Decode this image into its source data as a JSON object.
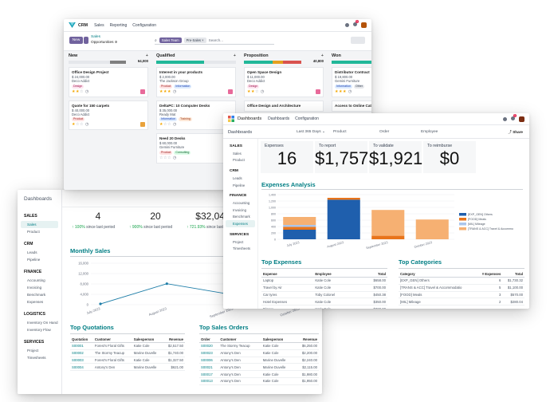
{
  "sales": {
    "breadcrumb": "Dashboards",
    "sidebar": [
      {
        "group": "SALES",
        "items": [
          "Sales",
          "Product"
        ],
        "active": "Sales"
      },
      {
        "group": "CRM",
        "items": [
          "Leads",
          "Pipeline"
        ]
      },
      {
        "group": "FINANCE",
        "items": [
          "Accounting",
          "Invoicing",
          "Benchmark",
          "Expenses"
        ]
      },
      {
        "group": "LOGISTICS",
        "items": [
          "Inventory On Hand",
          "Inventory Flow"
        ]
      },
      {
        "group": "SERVICES",
        "items": [
          "Project",
          "Timesheets"
        ]
      }
    ],
    "kpis": [
      {
        "value": "4",
        "delta": "↑ 100%",
        "delta_text": "since last period"
      },
      {
        "value": "20",
        "delta": "↑ 900%",
        "delta_text": "since last period"
      },
      {
        "value": "$32,043",
        "delta": "↑ 721.93%",
        "delta_text": "since last period"
      }
    ],
    "monthly_sales": {
      "title": "Monthly Sales",
      "chart_data": {
        "type": "line",
        "categories": [
          "July 2023",
          "August 2023",
          "September 2023",
          "October 2023"
        ],
        "values": [
          300,
          8100,
          3800,
          16000
        ],
        "yticks": [
          "0",
          "4,000",
          "8,000",
          "12,000",
          "16,000"
        ],
        "ylim": [
          0,
          16000
        ],
        "color": "#1f7ea8"
      }
    },
    "top_quotations": {
      "title": "Top Quotations",
      "columns": [
        "Quotation",
        "Customer",
        "Salesperson",
        "Revenue"
      ],
      "rows": [
        [
          "S00001",
          "Forest's Floral Gifts",
          "Katie Cole",
          "$2,517.50"
        ],
        [
          "S00002",
          "The Stormy Teacup",
          "Marine Duvelle",
          "$1,740.00"
        ],
        [
          "S00003",
          "Forest's Floral Gifts",
          "Katie Cole",
          "$1,327.50"
        ],
        [
          "S00004",
          "Antony's Den",
          "Marine Duvelle",
          "$621.00"
        ]
      ]
    },
    "top_sales_orders": {
      "title": "Top Sales Orders",
      "columns": [
        "Order",
        "Customer",
        "Salesperson",
        "Revenue"
      ],
      "rows": [
        [
          "S00020",
          "The Stormy Teacup",
          "Katie Cole",
          "$6,250.00"
        ],
        [
          "S00023",
          "Antony's Den",
          "Katie Cole",
          "$2,200.00"
        ],
        [
          "S00006",
          "Antony's Den",
          "Marine Duvelle",
          "$2,240.00"
        ],
        [
          "S00021",
          "Antony's Den",
          "Marine Duvelle",
          "$2,115.00"
        ],
        [
          "S00017",
          "Antony's Den",
          "Katie Cole",
          "$1,980.00"
        ],
        [
          "S00013",
          "Antony's Den",
          "Katie Cole",
          "$1,950.00"
        ]
      ]
    }
  },
  "crm": {
    "nav": {
      "app": "CRM",
      "menus": [
        "Sales",
        "Reporting",
        "Configuration"
      ],
      "chat_count": "1"
    },
    "new_label": "New",
    "breadcrumb": {
      "parent": "Sales",
      "current": "Opportunities"
    },
    "search": {
      "facets": [
        "Sales Team",
        "Pre-Sales"
      ],
      "placeholder": "Search..."
    },
    "columns": [
      {
        "name": "New",
        "amount": "64,000",
        "bar": [
          {
            "c": "#21b799",
            "w": 0
          },
          {
            "c": "#e5e7eb",
            "w": 0.72
          },
          {
            "c": "#808080",
            "w": 0.28
          }
        ],
        "cards": [
          {
            "title": "Office Design Project",
            "lines": [
              "$ 24,000.00",
              "Deco Addict"
            ],
            "tags": [
              {
                "t": "Design",
                "bg": "#fde4ef",
                "fg": "#9d174d"
              }
            ],
            "stars": 2,
            "av": "#e86a9a"
          },
          {
            "title": "Quote for 150 carpets",
            "lines": [
              "$ 40,000.00",
              "Deco Addict"
            ],
            "tags": [
              {
                "t": "Product",
                "bg": "#fee2e2",
                "fg": "#991b1b"
              }
            ],
            "stars": 1,
            "av": "#e9a23b"
          }
        ]
      },
      {
        "name": "Qualified",
        "amount": "",
        "bar": [
          {
            "c": "#21b799",
            "w": 0.6
          },
          {
            "c": "#e5e7eb",
            "w": 0.4
          }
        ],
        "cards": [
          {
            "title": "Interest in your products",
            "lines": [
              "$ 2,000.00",
              "The Jackson Group"
            ],
            "tags": [
              {
                "t": "Product",
                "bg": "#fee2e2",
                "fg": "#991b1b"
              },
              {
                "t": "Information",
                "bg": "#dbeafe",
                "fg": "#1e40af"
              }
            ],
            "stars": 3,
            "av": "#e86a9a"
          },
          {
            "title": "DeltaPC: 10 Computer Desks",
            "lines": [
              "$ 35,000.00",
              "Ready Mat"
            ],
            "tags": [
              {
                "t": "Information",
                "bg": "#dbeafe",
                "fg": "#1e40af"
              },
              {
                "t": "Training",
                "bg": "#fde7d6",
                "fg": "#9a3412"
              }
            ],
            "stars": 1,
            "av": "#e9a23b"
          },
          {
            "title": "Need 20 Desks",
            "lines": [
              "$ 60,000.00",
              "Gemini Furniture"
            ],
            "tags": [
              {
                "t": "Product",
                "bg": "#fee2e2",
                "fg": "#991b1b"
              },
              {
                "t": "Consulting",
                "bg": "#dcfce7",
                "fg": "#166534"
              }
            ],
            "stars": 0,
            "av": "#e86a9a"
          }
        ]
      },
      {
        "name": "Proposition",
        "amount": "40,800",
        "bar": [
          {
            "c": "#21b799",
            "w": 0.5
          },
          {
            "c": "#e5a01f",
            "w": 0.18
          },
          {
            "c": "#d9534f",
            "w": 0.32
          }
        ],
        "cards": [
          {
            "title": "Open Space Design",
            "lines": [
              "$ 11,000.00",
              "Deco Addict"
            ],
            "tags": [
              {
                "t": "Design",
                "bg": "#fde4ef",
                "fg": "#9d174d"
              }
            ],
            "stars": 2,
            "av": "#e86a9a"
          },
          {
            "title": "Office Design and Architecture",
            "lines": [],
            "tags": [],
            "stars": -1,
            "av": ""
          }
        ]
      },
      {
        "name": "Won",
        "amount": "",
        "bar": [
          {
            "c": "#21b799",
            "w": 1
          }
        ],
        "cards": [
          {
            "title": "Distributor Contract",
            "lines": [
              "$ 19,800.00",
              "Gemini Furniture"
            ],
            "tags": [
              {
                "t": "Information",
                "bg": "#dbeafe",
                "fg": "#1e40af"
              },
              {
                "t": "Other",
                "bg": "#e5e7eb",
                "fg": "#374151"
              }
            ],
            "stars": 3,
            "av": ""
          },
          {
            "title": "Access to Online Catalog",
            "lines": [],
            "tags": [],
            "stars": -1,
            "av": ""
          }
        ]
      }
    ]
  },
  "expenses": {
    "nav": {
      "app": "Dashboards",
      "menus": [
        "Dashboards",
        "Configuration"
      ],
      "chat_count": "1"
    },
    "breadcrumb": "Dashboards",
    "filters": [
      "Last 365 Days",
      "Product",
      "Order",
      "Employee"
    ],
    "share_label": "Share",
    "sidebar": [
      {
        "group": "SALES",
        "items": [
          "Sales",
          "Product"
        ]
      },
      {
        "group": "CRM",
        "items": [
          "Leads",
          "Pipeline"
        ]
      },
      {
        "group": "FINANCE",
        "items": [
          "Accounting",
          "Invoicing",
          "Benchmark",
          "Expenses"
        ],
        "active": "Expenses"
      },
      {
        "group": "SERVICES",
        "items": [
          "Project",
          "Timesheets"
        ]
      }
    ],
    "kpis": [
      {
        "label": "Expenses",
        "value": "16"
      },
      {
        "label": "To report",
        "value": "$1,757"
      },
      {
        "label": "To validate",
        "value": "$1,921"
      },
      {
        "label": "To reimburse",
        "value": "$0"
      }
    ],
    "analysis": {
      "title": "Expenses Analysis",
      "chart_data": {
        "type": "bar",
        "stacked": true,
        "categories": [
          "July 2023",
          "August 2023",
          "September 2023",
          "October 2023"
        ],
        "yticks": [
          "0",
          "200",
          "400",
          "600",
          "800",
          "1,000",
          "1,200",
          "1,400"
        ],
        "ylim": [
          0,
          1400
        ],
        "series": [
          {
            "name": "[EXP_GEN] Others",
            "color": "#1f5fad",
            "values": [
              300,
              1240,
              0,
              0
            ]
          },
          {
            "name": "[FOOD] Meals",
            "color": "#e8741b",
            "values": [
              90,
              60,
              110,
              0
            ]
          },
          {
            "name": "[MIL] Mileage",
            "color": "#aac6ec",
            "values": [
              60,
              0,
              0,
              0
            ]
          },
          {
            "name": "[TRANS & ACC] Travel & Accommo",
            "color": "#f6b072",
            "values": [
              250,
              0,
              810,
              620
            ]
          }
        ]
      }
    },
    "top_expenses": {
      "title": "Top Expenses",
      "columns": [
        "Expense",
        "Employee",
        "Total"
      ],
      "rows": [
        [
          "Laptop",
          "Katie Cole",
          "$658.00"
        ],
        [
          "Travel by Air",
          "Katie Cole",
          "$700.00"
        ],
        [
          "Car tyres",
          "Toby Colonel",
          "$450.38"
        ],
        [
          "Hotel Expenses",
          "Katie Cole",
          "$350.00"
        ],
        [
          "Dinner",
          "Katie Cole",
          "$300.00"
        ]
      ]
    },
    "top_categories": {
      "title": "Top Categories",
      "columns": [
        "Category",
        "# Expenses",
        "Total"
      ],
      "rows": [
        [
          "[EXP_GEN] Others",
          "6",
          "$1,730.32"
        ],
        [
          "[TRANS & ACC] Travel & Accommodatio",
          "5",
          "$1,100.00"
        ],
        [
          "[FOOD] Meals",
          "3",
          "$570.00"
        ],
        [
          "[MIL] Mileage",
          "2",
          "$280.04"
        ]
      ]
    }
  }
}
